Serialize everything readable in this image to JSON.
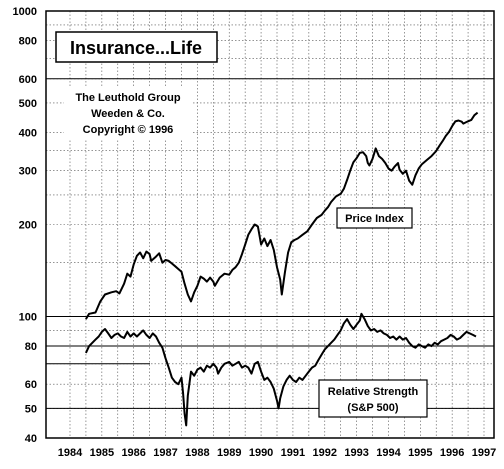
{
  "chart_data": {
    "type": "line",
    "title": "Insurance...Life",
    "attribution": [
      "The Leuthold Group",
      "Weeden & Co.",
      "Copyright © 1996"
    ],
    "x_axis": {
      "range": [
        1984,
        1997
      ],
      "tick_labels": [
        "1984",
        "1985",
        "1986",
        "1987",
        "1988",
        "1989",
        "1990",
        "1991",
        "1992",
        "1993",
        "1994",
        "1995",
        "1996",
        "1997"
      ]
    },
    "y_axis": {
      "scale": "log",
      "tick_labels": [
        "1000",
        "800",
        "600",
        "500",
        "400",
        "300",
        "200",
        "100",
        "80",
        "60",
        "50",
        "40"
      ]
    },
    "grid": true,
    "series": [
      {
        "name": "Price Index",
        "points": [
          [
            1984.5,
            98
          ],
          [
            1984.6,
            102
          ],
          [
            1984.8,
            103
          ],
          [
            1984.95,
            112
          ],
          [
            1985.1,
            118
          ],
          [
            1985.3,
            120
          ],
          [
            1985.45,
            121
          ],
          [
            1985.55,
            119
          ],
          [
            1985.7,
            128
          ],
          [
            1985.8,
            138
          ],
          [
            1985.9,
            135
          ],
          [
            1986.0,
            148
          ],
          [
            1986.1,
            158
          ],
          [
            1986.2,
            162
          ],
          [
            1986.3,
            155
          ],
          [
            1986.4,
            163
          ],
          [
            1986.5,
            160
          ],
          [
            1986.55,
            152
          ],
          [
            1986.7,
            157
          ],
          [
            1986.8,
            161
          ],
          [
            1986.9,
            150
          ],
          [
            1987.0,
            153
          ],
          [
            1987.1,
            152
          ],
          [
            1987.2,
            149
          ],
          [
            1987.3,
            146
          ],
          [
            1987.4,
            143
          ],
          [
            1987.5,
            140
          ],
          [
            1987.6,
            128
          ],
          [
            1987.7,
            118
          ],
          [
            1987.8,
            112
          ],
          [
            1987.9,
            120
          ],
          [
            1988.0,
            126
          ],
          [
            1988.1,
            135
          ],
          [
            1988.2,
            133
          ],
          [
            1988.3,
            130
          ],
          [
            1988.4,
            134
          ],
          [
            1988.5,
            130
          ],
          [
            1988.55,
            126
          ],
          [
            1988.7,
            134
          ],
          [
            1988.85,
            138
          ],
          [
            1989.0,
            137
          ],
          [
            1989.1,
            142
          ],
          [
            1989.2,
            145
          ],
          [
            1989.3,
            150
          ],
          [
            1989.4,
            160
          ],
          [
            1989.5,
            172
          ],
          [
            1989.6,
            185
          ],
          [
            1989.7,
            193
          ],
          [
            1989.8,
            200
          ],
          [
            1989.9,
            197
          ],
          [
            1990.0,
            172
          ],
          [
            1990.1,
            180
          ],
          [
            1990.2,
            170
          ],
          [
            1990.3,
            178
          ],
          [
            1990.4,
            165
          ],
          [
            1990.5,
            145
          ],
          [
            1990.6,
            132
          ],
          [
            1990.65,
            118
          ],
          [
            1990.75,
            140
          ],
          [
            1990.85,
            162
          ],
          [
            1990.95,
            175
          ],
          [
            1991.05,
            178
          ],
          [
            1991.15,
            180
          ],
          [
            1991.3,
            185
          ],
          [
            1991.45,
            190
          ],
          [
            1991.6,
            200
          ],
          [
            1991.75,
            210
          ],
          [
            1991.9,
            215
          ],
          [
            1992.0,
            222
          ],
          [
            1992.1,
            228
          ],
          [
            1992.2,
            237
          ],
          [
            1992.35,
            247
          ],
          [
            1992.5,
            252
          ],
          [
            1992.6,
            262
          ],
          [
            1992.7,
            280
          ],
          [
            1992.8,
            300
          ],
          [
            1992.9,
            320
          ],
          [
            1993.0,
            330
          ],
          [
            1993.1,
            343
          ],
          [
            1993.2,
            345
          ],
          [
            1993.3,
            335
          ],
          [
            1993.35,
            318
          ],
          [
            1993.4,
            312
          ],
          [
            1993.5,
            328
          ],
          [
            1993.6,
            355
          ],
          [
            1993.7,
            335
          ],
          [
            1993.8,
            328
          ],
          [
            1993.9,
            318
          ],
          [
            1994.0,
            305
          ],
          [
            1994.1,
            300
          ],
          [
            1994.2,
            310
          ],
          [
            1994.3,
            318
          ],
          [
            1994.35,
            302
          ],
          [
            1994.45,
            293
          ],
          [
            1994.55,
            300
          ],
          [
            1994.65,
            278
          ],
          [
            1994.75,
            270
          ],
          [
            1994.85,
            290
          ],
          [
            1994.95,
            305
          ],
          [
            1995.05,
            315
          ],
          [
            1995.2,
            325
          ],
          [
            1995.35,
            335
          ],
          [
            1995.5,
            348
          ],
          [
            1995.6,
            362
          ],
          [
            1995.7,
            375
          ],
          [
            1995.8,
            390
          ],
          [
            1995.9,
            402
          ],
          [
            1996.0,
            420
          ],
          [
            1996.1,
            435
          ],
          [
            1996.2,
            438
          ],
          [
            1996.3,
            434
          ],
          [
            1996.35,
            428
          ],
          [
            1996.45,
            433
          ],
          [
            1996.6,
            440
          ],
          [
            1996.7,
            456
          ],
          [
            1996.8,
            465
          ]
        ]
      },
      {
        "name": "Relative Strength (S&P 500)",
        "points": [
          [
            1984.5,
            76
          ],
          [
            1984.6,
            80
          ],
          [
            1984.7,
            82
          ],
          [
            1984.8,
            84
          ],
          [
            1984.9,
            86
          ],
          [
            1985.0,
            89
          ],
          [
            1985.1,
            91
          ],
          [
            1985.2,
            88
          ],
          [
            1985.3,
            85
          ],
          [
            1985.4,
            87
          ],
          [
            1985.5,
            88
          ],
          [
            1985.6,
            86
          ],
          [
            1985.7,
            85
          ],
          [
            1985.8,
            89
          ],
          [
            1985.9,
            86
          ],
          [
            1986.0,
            88
          ],
          [
            1986.1,
            86
          ],
          [
            1986.2,
            88
          ],
          [
            1986.3,
            90
          ],
          [
            1986.4,
            87
          ],
          [
            1986.5,
            85
          ],
          [
            1986.6,
            88
          ],
          [
            1986.7,
            86
          ],
          [
            1986.8,
            82
          ],
          [
            1986.9,
            79
          ],
          [
            1987.0,
            73
          ],
          [
            1987.1,
            68
          ],
          [
            1987.2,
            63
          ],
          [
            1987.3,
            61
          ],
          [
            1987.4,
            60
          ],
          [
            1987.5,
            63
          ],
          [
            1987.55,
            56
          ],
          [
            1987.6,
            48
          ],
          [
            1987.65,
            44
          ],
          [
            1987.7,
            55
          ],
          [
            1987.8,
            66
          ],
          [
            1987.9,
            64
          ],
          [
            1988.0,
            67
          ],
          [
            1988.1,
            68
          ],
          [
            1988.2,
            66
          ],
          [
            1988.3,
            69
          ],
          [
            1988.4,
            68
          ],
          [
            1988.5,
            70
          ],
          [
            1988.6,
            68
          ],
          [
            1988.65,
            65
          ],
          [
            1988.75,
            68
          ],
          [
            1988.85,
            70
          ],
          [
            1989.0,
            71
          ],
          [
            1989.1,
            69
          ],
          [
            1989.2,
            70
          ],
          [
            1989.3,
            71
          ],
          [
            1989.4,
            68
          ],
          [
            1989.5,
            69
          ],
          [
            1989.6,
            68
          ],
          [
            1989.7,
            65
          ],
          [
            1989.8,
            70
          ],
          [
            1989.9,
            71
          ],
          [
            1990.0,
            66
          ],
          [
            1990.1,
            62
          ],
          [
            1990.2,
            63
          ],
          [
            1990.3,
            61
          ],
          [
            1990.4,
            58
          ],
          [
            1990.5,
            53
          ],
          [
            1990.55,
            50
          ],
          [
            1990.6,
            54
          ],
          [
            1990.7,
            59
          ],
          [
            1990.8,
            62
          ],
          [
            1990.9,
            64
          ],
          [
            1991.0,
            62
          ],
          [
            1991.1,
            61
          ],
          [
            1991.2,
            63
          ],
          [
            1991.3,
            62
          ],
          [
            1991.4,
            64
          ],
          [
            1991.5,
            66
          ],
          [
            1991.6,
            68
          ],
          [
            1991.7,
            69
          ],
          [
            1991.8,
            72
          ],
          [
            1991.9,
            75
          ],
          [
            1992.0,
            78
          ],
          [
            1992.1,
            80
          ],
          [
            1992.2,
            82
          ],
          [
            1992.3,
            84
          ],
          [
            1992.4,
            87
          ],
          [
            1992.5,
            90
          ],
          [
            1992.6,
            95
          ],
          [
            1992.7,
            98
          ],
          [
            1992.8,
            94
          ],
          [
            1992.9,
            91
          ],
          [
            1993.0,
            94
          ],
          [
            1993.1,
            97
          ],
          [
            1993.15,
            102
          ],
          [
            1993.25,
            98
          ],
          [
            1993.35,
            93
          ],
          [
            1993.45,
            90
          ],
          [
            1993.55,
            91
          ],
          [
            1993.65,
            89
          ],
          [
            1993.75,
            90
          ],
          [
            1993.85,
            88
          ],
          [
            1993.95,
            87
          ],
          [
            1994.05,
            85
          ],
          [
            1994.15,
            86
          ],
          [
            1994.25,
            84
          ],
          [
            1994.35,
            86
          ],
          [
            1994.45,
            84
          ],
          [
            1994.55,
            85
          ],
          [
            1994.65,
            82
          ],
          [
            1994.75,
            80
          ],
          [
            1994.85,
            79
          ],
          [
            1994.95,
            81
          ],
          [
            1995.05,
            80
          ],
          [
            1995.15,
            79
          ],
          [
            1995.25,
            81
          ],
          [
            1995.35,
            80
          ],
          [
            1995.45,
            82
          ],
          [
            1995.55,
            81
          ],
          [
            1995.65,
            83
          ],
          [
            1995.75,
            84
          ],
          [
            1995.85,
            85
          ],
          [
            1995.95,
            87
          ],
          [
            1996.05,
            86
          ],
          [
            1996.15,
            84
          ],
          [
            1996.25,
            85
          ],
          [
            1996.35,
            87
          ],
          [
            1996.45,
            89
          ],
          [
            1996.55,
            88
          ],
          [
            1996.65,
            87
          ],
          [
            1996.75,
            86
          ]
        ]
      }
    ]
  }
}
